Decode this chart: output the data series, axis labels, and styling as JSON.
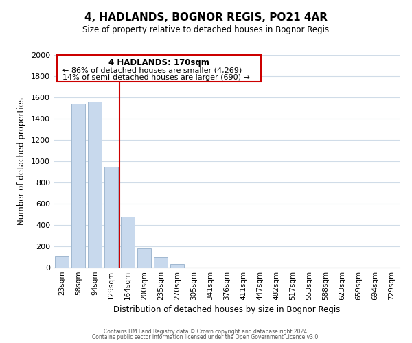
{
  "title": "4, HADLANDS, BOGNOR REGIS, PO21 4AR",
  "subtitle": "Size of property relative to detached houses in Bognor Regis",
  "xlabel": "Distribution of detached houses by size in Bognor Regis",
  "ylabel": "Number of detached properties",
  "bar_labels": [
    "23sqm",
    "58sqm",
    "94sqm",
    "129sqm",
    "164sqm",
    "200sqm",
    "235sqm",
    "270sqm",
    "305sqm",
    "341sqm",
    "376sqm",
    "411sqm",
    "447sqm",
    "482sqm",
    "517sqm",
    "553sqm",
    "588sqm",
    "623sqm",
    "659sqm",
    "694sqm",
    "729sqm"
  ],
  "bar_values": [
    110,
    1540,
    1560,
    950,
    480,
    180,
    95,
    35,
    0,
    0,
    0,
    0,
    0,
    0,
    0,
    0,
    0,
    0,
    0,
    0,
    0
  ],
  "bar_color": "#c8d9ed",
  "bar_edge_color": "#a0b8d0",
  "vline_color": "#cc0000",
  "ylim": [
    0,
    2000
  ],
  "yticks": [
    0,
    200,
    400,
    600,
    800,
    1000,
    1200,
    1400,
    1600,
    1800,
    2000
  ],
  "annotation_title": "4 HADLANDS: 170sqm",
  "annotation_line1": "← 86% of detached houses are smaller (4,269)",
  "annotation_line2": "14% of semi-detached houses are larger (690) →",
  "annotation_box_color": "#ffffff",
  "annotation_box_edge": "#cc0000",
  "footer_line1": "Contains HM Land Registry data © Crown copyright and database right 2024.",
  "footer_line2": "Contains public sector information licensed under the Open Government Licence v3.0.",
  "background_color": "#ffffff",
  "grid_color": "#d0dce8"
}
